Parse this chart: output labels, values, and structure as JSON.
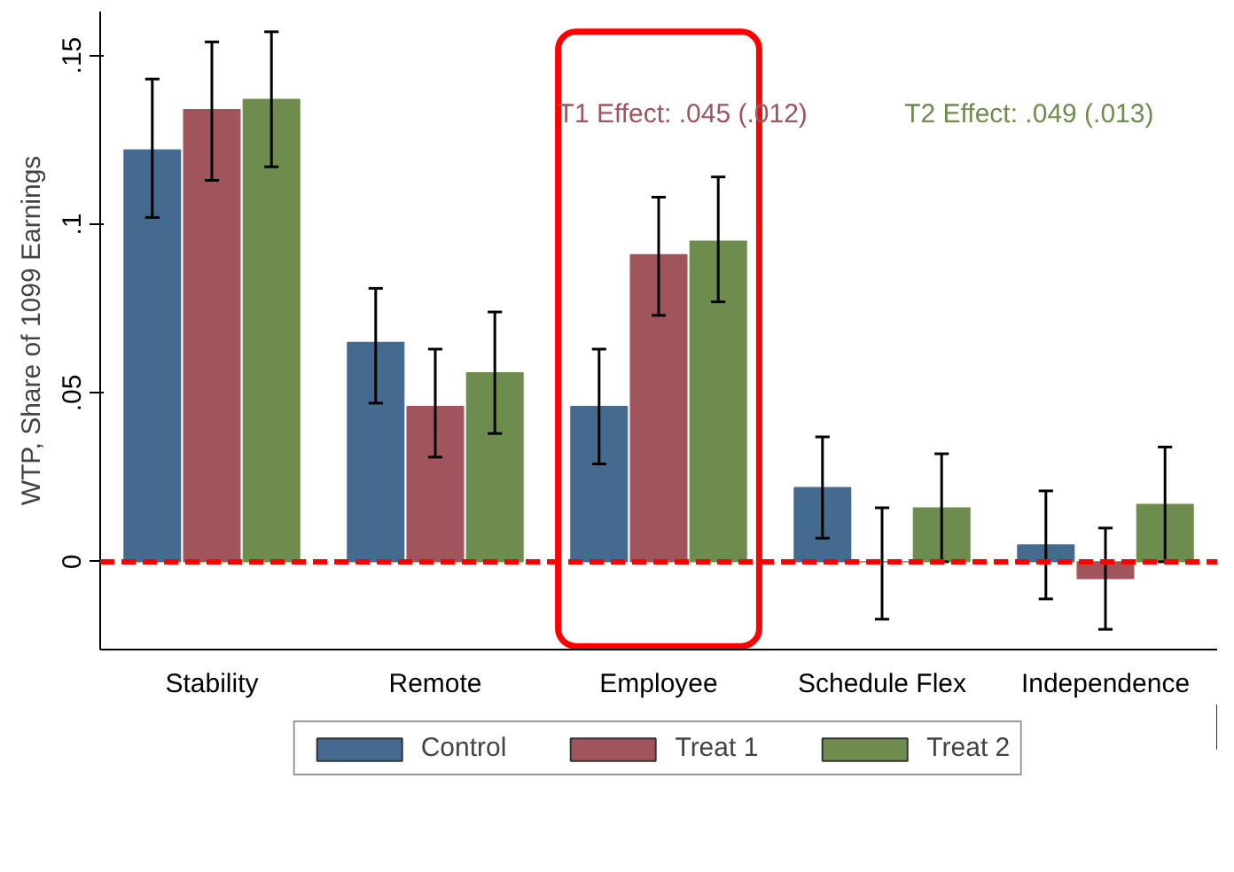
{
  "chart_data": {
    "type": "bar",
    "ylabel": "WTP, Share of 1099 Earnings",
    "categories": [
      "Stability",
      "Remote",
      "Employee",
      "Schedule Flex",
      "Independence"
    ],
    "series": [
      {
        "name": "Control",
        "color": "#456a8f",
        "values": [
          0.122,
          0.065,
          0.046,
          0.022,
          0.005
        ],
        "errors": [
          [
            0.102,
            0.143
          ],
          [
            0.047,
            0.081
          ],
          [
            0.029,
            0.063
          ],
          [
            0.007,
            0.037
          ],
          [
            -0.011,
            0.021
          ]
        ]
      },
      {
        "name": "Treat 1",
        "color": "#a2545c",
        "values": [
          0.134,
          0.046,
          0.091,
          0.0,
          -0.005
        ],
        "errors": [
          [
            0.113,
            0.154
          ],
          [
            0.031,
            0.063
          ],
          [
            0.073,
            0.108
          ],
          [
            -0.017,
            0.016
          ],
          [
            -0.02,
            0.01
          ]
        ]
      },
      {
        "name": "Treat 2",
        "color": "#6f8c4f",
        "values": [
          0.137,
          0.056,
          0.095,
          0.016,
          0.017
        ],
        "errors": [
          [
            0.117,
            0.157
          ],
          [
            0.038,
            0.074
          ],
          [
            0.077,
            0.114
          ],
          [
            0.0,
            0.032
          ],
          [
            0.0,
            0.034
          ]
        ]
      }
    ],
    "ylim": [
      -0.026,
      0.163
    ],
    "yticks": [
      {
        "value": 0,
        "label": "0"
      },
      {
        "value": 0.05,
        "label": ".05"
      },
      {
        "value": 0.1,
        "label": ".1"
      },
      {
        "value": 0.15,
        "label": ".15"
      }
    ],
    "ref_lines": [
      {
        "axis": "y",
        "value": 0,
        "color": "#ff0000",
        "line_style": "dashed"
      }
    ],
    "annotations": [
      "T1 Effect: .045 (.012)",
      "T2 Effect: .049 (.013)"
    ],
    "grid": false,
    "legend": "bottom"
  }
}
